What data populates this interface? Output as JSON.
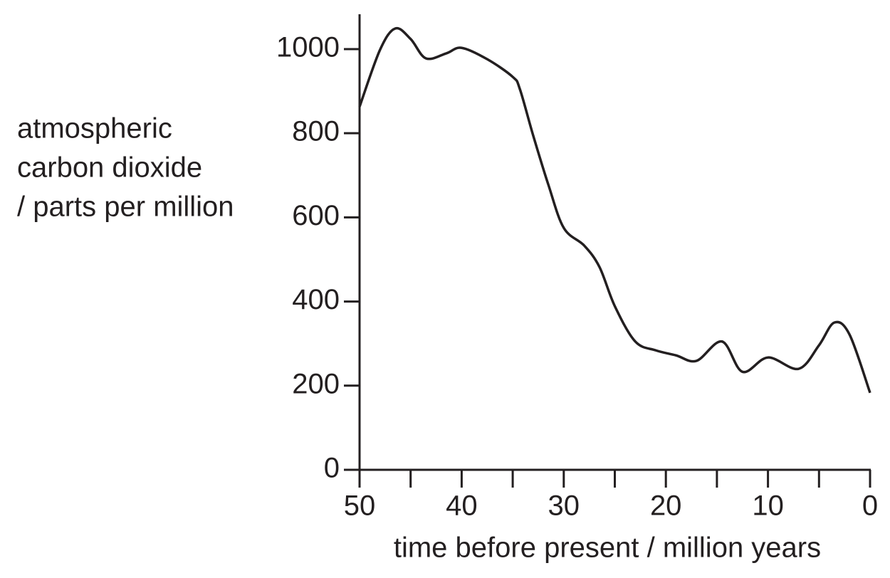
{
  "chart_data": {
    "type": "line",
    "ylabel": [
      "atmospheric",
      "carbon dioxide",
      "/ parts per million"
    ],
    "xlabel": "time before present / million years",
    "x": [
      50,
      48,
      46.5,
      45,
      43.5,
      41.5,
      40,
      37.5,
      35,
      34.3,
      33,
      31.5,
      30,
      28,
      26.5,
      25,
      23,
      21,
      19,
      17,
      14.5,
      12.5,
      10,
      7,
      5,
      3.5,
      2,
      0
    ],
    "series": [
      {
        "color": "#231f20",
        "values": [
          863,
          998,
          1049,
          1024,
          978,
          990,
          1003,
          976,
          934,
          905,
          795,
          677,
          575,
          533,
          482,
          389,
          305,
          284,
          272,
          259,
          305,
          233,
          267,
          240,
          296,
          350,
          321,
          183
        ]
      }
    ],
    "xlim": [
      50,
      0
    ],
    "xticks": [
      50,
      40,
      30,
      20,
      10,
      0
    ],
    "xminorticks": [
      45,
      35,
      25,
      15,
      5
    ],
    "ylim": [
      0,
      1080
    ],
    "yticks": [
      0,
      200,
      400,
      600,
      800,
      1000
    ],
    "grid": false
  }
}
